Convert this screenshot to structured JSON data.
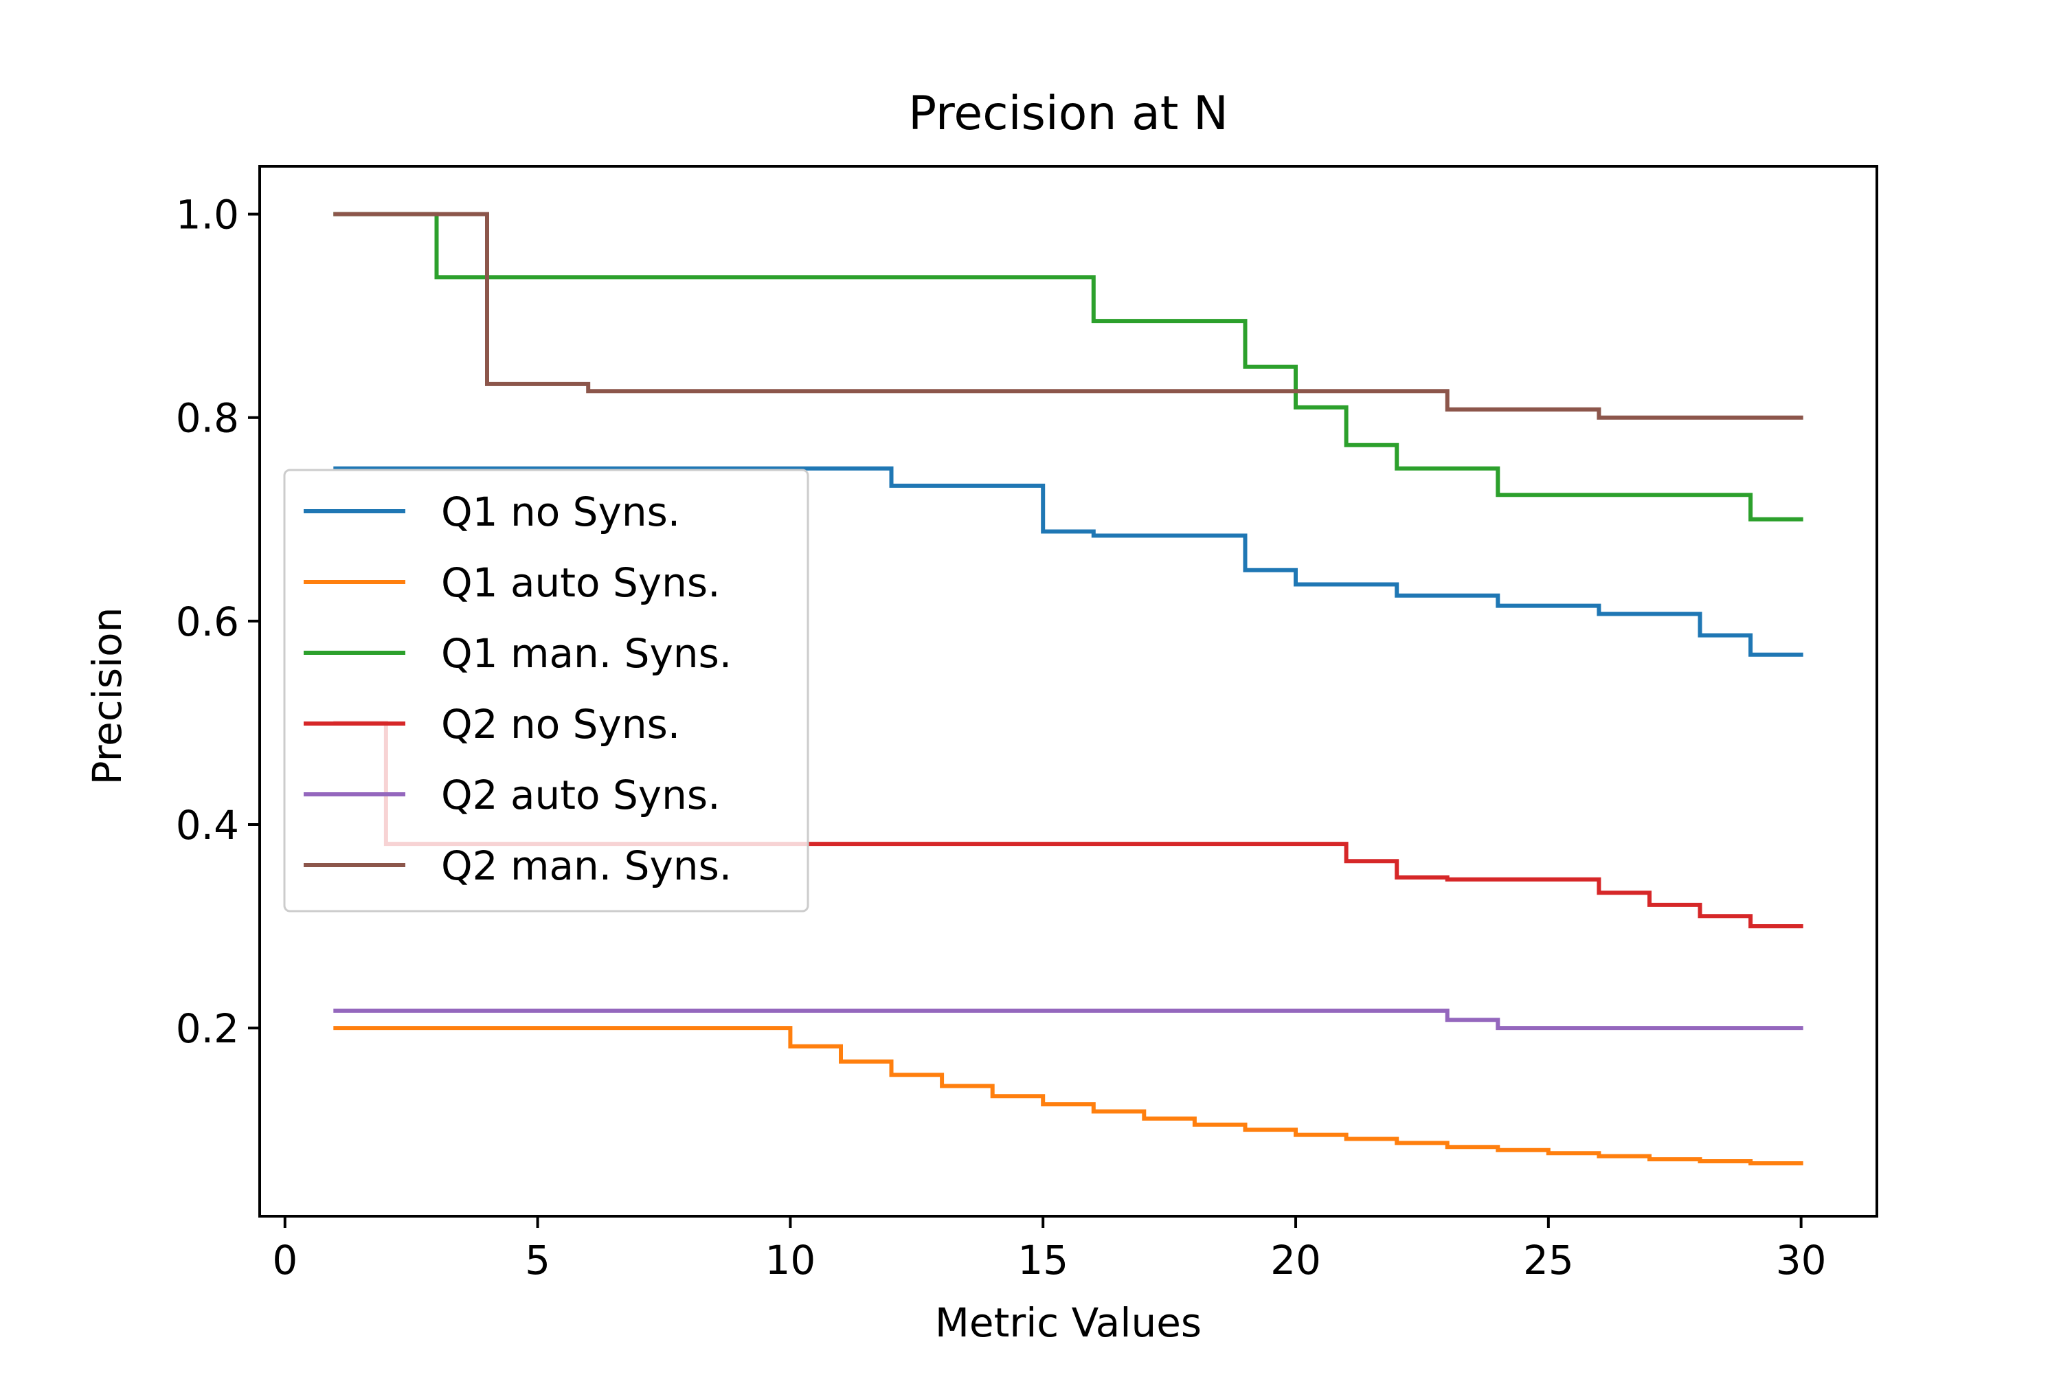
{
  "chart_data": {
    "type": "line",
    "title": "Precision at N",
    "xlabel": "Metric Values",
    "ylabel": "Precision",
    "xlim": [
      -0.5,
      31.5
    ],
    "ylim": [
      0.015,
      1.047
    ],
    "xticks": [
      0,
      5,
      10,
      15,
      20,
      25,
      30
    ],
    "xtick_labels": [
      "0",
      "5",
      "10",
      "15",
      "20",
      "25",
      "30"
    ],
    "yticks": [
      0.2,
      0.4,
      0.6,
      0.8,
      1.0
    ],
    "ytick_labels": [
      "0.2",
      "0.4",
      "0.6",
      "0.8",
      "1.0"
    ],
    "grid": false,
    "legend_position": "center-left",
    "step_style": "post",
    "x": [
      1,
      2,
      3,
      4,
      5,
      6,
      7,
      8,
      9,
      10,
      11,
      12,
      13,
      14,
      15,
      16,
      17,
      18,
      19,
      20,
      21,
      22,
      23,
      24,
      25,
      26,
      27,
      28,
      29,
      30
    ],
    "series": [
      {
        "name": "Q1 no Syns.",
        "color": "#1f77b4",
        "values": [
          0.75,
          0.75,
          0.75,
          0.75,
          0.75,
          0.75,
          0.75,
          0.75,
          0.75,
          0.75,
          0.75,
          0.733,
          0.733,
          0.733,
          0.688,
          0.684,
          0.684,
          0.684,
          0.65,
          0.636,
          0.636,
          0.625,
          0.625,
          0.615,
          0.615,
          0.607,
          0.607,
          0.586,
          0.567,
          0.567
        ]
      },
      {
        "name": "Q1 auto Syns.",
        "color": "#ff7f0e",
        "values": [
          0.2,
          0.2,
          0.2,
          0.2,
          0.2,
          0.2,
          0.2,
          0.2,
          0.2,
          0.182,
          0.167,
          0.154,
          0.143,
          0.133,
          0.125,
          0.118,
          0.111,
          0.105,
          0.1,
          0.095,
          0.091,
          0.087,
          0.083,
          0.08,
          0.077,
          0.074,
          0.071,
          0.069,
          0.067,
          0.067
        ]
      },
      {
        "name": "Q1 man. Syns.",
        "color": "#2ca02c",
        "values": [
          1.0,
          1.0,
          0.938,
          0.938,
          0.938,
          0.938,
          0.938,
          0.938,
          0.938,
          0.938,
          0.938,
          0.938,
          0.938,
          0.938,
          0.938,
          0.895,
          0.895,
          0.895,
          0.85,
          0.81,
          0.773,
          0.75,
          0.75,
          0.724,
          0.724,
          0.724,
          0.724,
          0.724,
          0.7,
          0.7
        ]
      },
      {
        "name": "Q2 no Syns.",
        "color": "#d62728",
        "values": [
          0.5,
          0.381,
          0.381,
          0.381,
          0.381,
          0.381,
          0.381,
          0.381,
          0.381,
          0.381,
          0.381,
          0.381,
          0.381,
          0.381,
          0.381,
          0.381,
          0.381,
          0.381,
          0.381,
          0.381,
          0.364,
          0.348,
          0.346,
          0.346,
          0.346,
          0.333,
          0.321,
          0.31,
          0.3,
          0.3
        ]
      },
      {
        "name": "Q2 auto Syns.",
        "color": "#9467bd",
        "values": [
          0.217,
          0.217,
          0.217,
          0.217,
          0.217,
          0.217,
          0.217,
          0.217,
          0.217,
          0.217,
          0.217,
          0.217,
          0.217,
          0.217,
          0.217,
          0.217,
          0.217,
          0.217,
          0.217,
          0.217,
          0.217,
          0.217,
          0.208,
          0.2,
          0.2,
          0.2,
          0.2,
          0.2,
          0.2,
          0.2
        ]
      },
      {
        "name": "Q2 man. Syns.",
        "color": "#8c564b",
        "values": [
          1.0,
          1.0,
          1.0,
          0.833,
          0.833,
          0.826,
          0.826,
          0.826,
          0.826,
          0.826,
          0.826,
          0.826,
          0.826,
          0.826,
          0.826,
          0.826,
          0.826,
          0.826,
          0.826,
          0.826,
          0.826,
          0.826,
          0.808,
          0.808,
          0.808,
          0.8,
          0.8,
          0.8,
          0.8,
          0.8
        ]
      }
    ]
  }
}
